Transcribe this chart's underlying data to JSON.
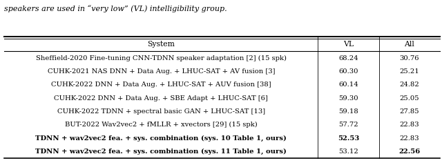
{
  "title_text": "speakers are used in “very low” (VL) intelligibility group.",
  "header": [
    "System",
    "VL",
    "All"
  ],
  "rows": [
    [
      "Sheffield-2020 Fine-tuning CNN-TDNN speaker adaptation [2] (15 spk)",
      "68.24",
      "30.76",
      false
    ],
    [
      "CUHK-2021 NAS DNN + Data Aug. + LHUC-SAT + AV fusion [3]",
      "60.30",
      "25.21",
      false
    ],
    [
      "CUHK-2022 DNN + Data Aug. + LHUC-SAT + AUV fusion [38]",
      "60.14",
      "24.82",
      false
    ],
    [
      "CUHK-2022 DNN + Data Aug. + SBE Adapt + LHUC-SAT [6]",
      "59.30",
      "25.05",
      false
    ],
    [
      "CUHK-2022 TDNN + spectral basic GAN + LHUC-SAT [13]",
      "59.18",
      "27.85",
      false
    ],
    [
      "BUT-2022 Wav2vec2 + fMLLR + xvectors [29] (15 spk)",
      "57.72",
      "22.83",
      false
    ],
    [
      "TDNN + wav2vec2 fea. + sys. combination (sys. 10 Table 1, ours)",
      "52.53",
      "22.83",
      true
    ],
    [
      "TDNN + wav2vec2 fea. + sys. combination (sys. 11 Table 1, ours)",
      "53.12",
      "22.56",
      true
    ]
  ],
  "bold_vl": [
    false,
    false,
    false,
    false,
    false,
    false,
    true,
    false
  ],
  "bold_all": [
    false,
    false,
    false,
    false,
    false,
    false,
    false,
    true
  ],
  "fontsize": 7.2,
  "header_fontsize": 7.8,
  "title_fontsize": 8.0
}
